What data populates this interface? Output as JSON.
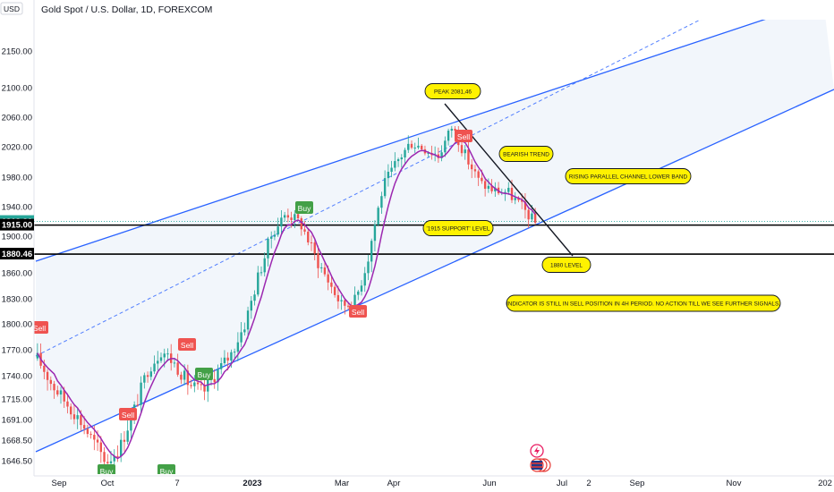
{
  "header": {
    "currency": "USD",
    "title": "Gold Spot / U.S. Dollar, 1D, FOREXCOM"
  },
  "chart_data": {
    "type": "candlestick",
    "title": "Gold Spot / U.S. Dollar, 1D, FOREXCOM",
    "y_axis": {
      "position": "left",
      "ticks": [
        2150.0,
        2100.0,
        2060.0,
        2020.0,
        1980.0,
        1940.0,
        1900.0,
        1860.0,
        1830.0,
        1800.0,
        1770.0,
        1740.0,
        1715.0,
        1691.0,
        1668.5,
        1646.5
      ],
      "tick_labels": [
        "2150.00",
        "2100.00",
        "2060.00",
        "2020.00",
        "1980.00",
        "1940.00",
        "1900.00",
        "1860.00",
        "1830.00",
        "1800.00",
        "1770.00",
        "1740.00",
        "1715.00",
        "1691.00",
        "1668.50",
        "1646.50"
      ],
      "price_tags": [
        {
          "label": "1919.90",
          "value": 1919.9,
          "color": "#26a69a"
        },
        {
          "label": "1915.00",
          "value": 1915.0,
          "color": "#000000"
        },
        {
          "label": "1880.46",
          "value": 1880.46,
          "color": "#000000"
        }
      ]
    },
    "x_axis": {
      "labels": [
        {
          "text": "Sep",
          "bold": false
        },
        {
          "text": "Oct",
          "bold": false
        },
        {
          "text": "7",
          "bold": false
        },
        {
          "text": "2023",
          "bold": true
        },
        {
          "text": "Mar",
          "bold": false
        },
        {
          "text": "Apr",
          "bold": false
        },
        {
          "text": "Jun",
          "bold": false
        },
        {
          "text": "Jul",
          "bold": false
        },
        {
          "text": "2",
          "bold": false
        },
        {
          "text": "Sep",
          "bold": false
        },
        {
          "text": "Nov",
          "bold": false
        },
        {
          "text": "202",
          "bold": false
        }
      ]
    },
    "price_path": [
      1760,
      1732,
      1712,
      1692,
      1668,
      1645,
      1662,
      1703,
      1748,
      1770,
      1752,
      1730,
      1722,
      1745,
      1765,
      1800,
      1858,
      1905,
      1932,
      1918,
      1880,
      1852,
      1822,
      1828,
      1882,
      1968,
      2000,
      2026,
      2018,
      2008,
      2048,
      2006,
      1972,
      1962,
      1960,
      1940,
      1918
    ],
    "horizontal_levels": [
      1915.0,
      1880.46
    ],
    "signals": [
      {
        "label": "Sell",
        "type": "sell"
      },
      {
        "label": "Sell",
        "type": "sell"
      },
      {
        "label": "Buy",
        "type": "buy"
      },
      {
        "label": "Sell",
        "type": "sell"
      },
      {
        "label": "Buy",
        "type": "buy"
      },
      {
        "label": "Buy",
        "type": "buy"
      },
      {
        "label": "Sell",
        "type": "sell"
      },
      {
        "label": "Buy",
        "type": "buy"
      },
      {
        "label": "Sell",
        "type": "sell"
      }
    ],
    "annotations": [
      "PEAK 2081,46",
      "BEARISH TREND",
      "RISING PARALLEL CHANNEL LOWER BAND",
      "'1915 SUPPORT' LEVEL",
      "1880 LEVEL",
      "INDICATOR IS STILL IN SELL POSITION IN 4H PERIOD.  NO ACTION TILL WE SEE FURTHER SIGNALS."
    ],
    "colors": {
      "up": "#26a69a",
      "down": "#ef5350",
      "channel": "#2962ff",
      "indicator": "#9c27b0",
      "note_fill": "#fff200"
    },
    "grid": false
  }
}
